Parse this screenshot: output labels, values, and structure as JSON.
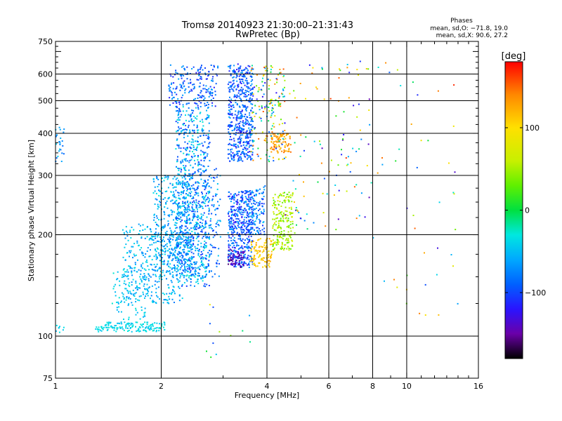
{
  "chart_data": {
    "type": "scatter",
    "title_lines": [
      "Tromsø 20140923 21:30:00–21:31:43",
      "RwPretec (Bp)"
    ],
    "stats": {
      "heading": "Phases",
      "o_line": "mean, sd,O: −71.8, 19.0",
      "x_line": "mean, sd,X:  90.6, 27.2"
    },
    "xlabel": "Frequency [MHz]",
    "ylabel": "Stationary phase Virtual Height [km]",
    "x_scale": "log",
    "y_scale": "log",
    "xlim": [
      1,
      16
    ],
    "ylim": [
      75,
      750
    ],
    "x_ticks": [
      "1",
      "2",
      "4",
      "6",
      "8",
      "10",
      "16"
    ],
    "y_ticks": [
      "75",
      "100",
      "200",
      "300",
      "400",
      "500",
      "600",
      "750"
    ],
    "grid_x": [
      2,
      4,
      6,
      8,
      10
    ],
    "grid_y": [
      100,
      200,
      300,
      400,
      500,
      600
    ],
    "colorbar": {
      "label": "[deg]",
      "range": [
        -180,
        180
      ],
      "ticks": [
        "100",
        "0",
        "−100"
      ],
      "tick_values": [
        100,
        0,
        -100
      ],
      "stops": [
        {
          "v": -180,
          "color": "#000000"
        },
        {
          "v": -150,
          "color": "#6a00a8"
        },
        {
          "v": -120,
          "color": "#2a14ff"
        },
        {
          "v": -90,
          "color": "#0060ff"
        },
        {
          "v": -60,
          "color": "#00a8ff"
        },
        {
          "v": -30,
          "color": "#00e8e0"
        },
        {
          "v": 0,
          "color": "#00e040"
        },
        {
          "v": 30,
          "color": "#60f000"
        },
        {
          "v": 60,
          "color": "#c8f000"
        },
        {
          "v": 100,
          "color": "#ffe000"
        },
        {
          "v": 140,
          "color": "#ff8800"
        },
        {
          "v": 180,
          "color": "#ff0000"
        }
      ]
    },
    "clusters": [
      {
        "f": [
          1.0,
          1.06
        ],
        "h": [
          330,
          420
        ],
        "n": 25,
        "phase": [
          -90,
          -40
        ],
        "shape": "uniform"
      },
      {
        "f": [
          1.0,
          1.06
        ],
        "h": [
          102,
          108
        ],
        "n": 8,
        "phase": [
          -60,
          -30
        ],
        "shape": "uniform"
      },
      {
        "f": [
          1.3,
          2.05
        ],
        "h": [
          103,
          110
        ],
        "n": 150,
        "phase": [
          -50,
          -25
        ],
        "shape": "uniform"
      },
      {
        "f": [
          1.45,
          1.85
        ],
        "h": [
          112,
          160
        ],
        "n": 80,
        "phase": [
          -60,
          -25
        ],
        "shape": "uniform"
      },
      {
        "f": [
          1.55,
          2.3
        ],
        "h": [
          125,
          215
        ],
        "n": 360,
        "phase": [
          -80,
          -30
        ],
        "shape": "uniform"
      },
      {
        "f": [
          1.9,
          2.45
        ],
        "h": [
          150,
          300
        ],
        "n": 380,
        "phase": [
          -90,
          -30
        ],
        "shape": "uniform"
      },
      {
        "f": [
          2.2,
          2.75
        ],
        "h": [
          140,
          480
        ],
        "n": 700,
        "phase": [
          -110,
          -25
        ],
        "shape": "uniform"
      },
      {
        "f": [
          2.1,
          2.9
        ],
        "h": [
          480,
          640
        ],
        "n": 200,
        "phase": [
          -120,
          -60
        ],
        "shape": "uniform"
      },
      {
        "f": [
          2.3,
          2.95
        ],
        "h": [
          150,
          320
        ],
        "n": 260,
        "phase": [
          -110,
          -40
        ],
        "shape": "uniform"
      },
      {
        "f": [
          3.1,
          3.65
        ],
        "h": [
          160,
          270
        ],
        "n": 440,
        "phase": [
          -125,
          -55
        ],
        "shape": "uniform"
      },
      {
        "f": [
          3.1,
          3.65
        ],
        "h": [
          330,
          645
        ],
        "n": 520,
        "phase": [
          -125,
          -60
        ],
        "shape": "uniform"
      },
      {
        "f": [
          3.5,
          3.95
        ],
        "h": [
          200,
          280
        ],
        "n": 140,
        "phase": [
          -110,
          -50
        ],
        "shape": "uniform"
      },
      {
        "f": [
          3.1,
          3.45
        ],
        "h": [
          160,
          180
        ],
        "n": 60,
        "phase": [
          -160,
          -130
        ],
        "shape": "uniform"
      },
      {
        "f": [
          3.6,
          4.15
        ],
        "h": [
          160,
          195
        ],
        "n": 110,
        "phase": [
          90,
          130
        ],
        "shape": "uniform"
      },
      {
        "f": [
          4.15,
          4.75
        ],
        "h": [
          180,
          270
        ],
        "n": 200,
        "phase": [
          20,
          80
        ],
        "shape": "uniform"
      },
      {
        "f": [
          4.1,
          4.7
        ],
        "h": [
          350,
          400
        ],
        "n": 90,
        "phase": [
          110,
          150
        ],
        "shape": "uniform"
      },
      {
        "f": [
          3.6,
          4.5
        ],
        "h": [
          330,
          640
        ],
        "n": 170,
        "phase": [
          -130,
          160
        ],
        "shape": "uniform"
      },
      {
        "f": [
          4.5,
          8.0
        ],
        "h": [
          200,
          660
        ],
        "n": 110,
        "phase": [
          -150,
          170
        ],
        "shape": "uniform"
      },
      {
        "f": [
          8.0,
          14.0
        ],
        "h": [
          110,
          660
        ],
        "n": 45,
        "phase": [
          -150,
          170
        ],
        "shape": "uniform"
      },
      {
        "f": [
          2.5,
          3.6
        ],
        "h": [
          85,
          125
        ],
        "n": 12,
        "phase": [
          -100,
          120
        ],
        "shape": "uniform"
      }
    ]
  }
}
